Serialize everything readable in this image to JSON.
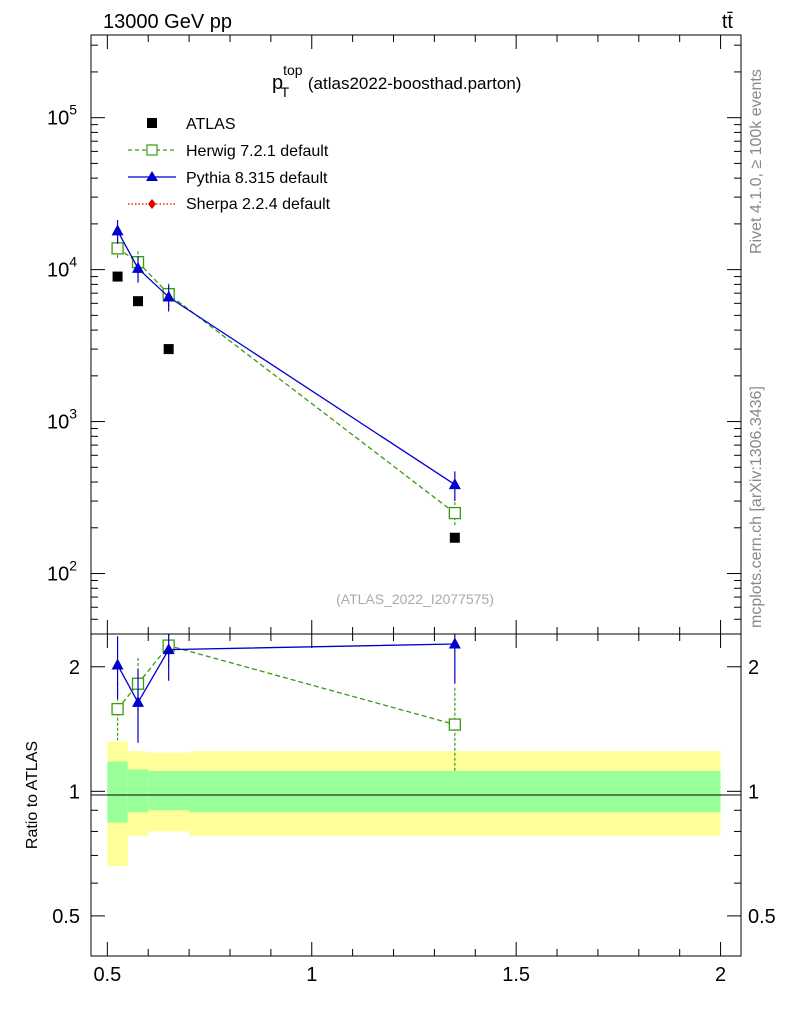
{
  "header": {
    "left": "13000 GeV pp",
    "right": "tt̄"
  },
  "side_labels": {
    "top": "Rivet 4.1.0, ≥ 100k events",
    "bottom": "mcplots.cern.ch [arXiv:1306.3436]"
  },
  "watermark": "(ATLAS_2022_I2077575)",
  "chart_data": {
    "type": "scatter",
    "title": {
      "main": "p",
      "sup": "top",
      "sub": "T",
      "suffix": " (atlas2022-boosthad.parton)"
    },
    "xlabel": "",
    "ylabel_ratio": "Ratio to ATLAS",
    "xlim": [
      0.46,
      2.05
    ],
    "ylim_main": [
      40,
      350000
    ],
    "ylim_ratio": [
      0.4,
      2.4
    ],
    "x_ticks": [
      0.5,
      1,
      1.5,
      2
    ],
    "x_tick_labels": [
      "0.5",
      "1",
      "1.5",
      "2"
    ],
    "y_ticks_main": [
      100,
      1000,
      10000,
      100000
    ],
    "y_tick_labels_main": [
      {
        "base": "10",
        "exp": "2"
      },
      {
        "base": "10",
        "exp": "3"
      },
      {
        "base": "10",
        "exp": "4"
      },
      {
        "base": "10",
        "exp": "5"
      }
    ],
    "y_ticks_ratio": [
      0.5,
      1,
      2
    ],
    "y_tick_labels_ratio": [
      "0.5",
      "1",
      "2"
    ],
    "legend": [
      {
        "name": "ATLAS",
        "color": "#000000",
        "style": "square"
      },
      {
        "name": "Herwig 7.2.1 default",
        "color": "#3a9a12",
        "style": "open-square-dashed"
      },
      {
        "name": "Pythia 8.315 default",
        "color": "#0000cc",
        "style": "triangle-solid"
      },
      {
        "name": "Sherpa 2.2.4 default",
        "color": "#e00000",
        "style": "diamond-dotted"
      }
    ],
    "data": {
      "x": [
        0.525,
        0.575,
        0.65,
        1.35
      ],
      "y": [
        9000,
        6200,
        3000,
        172
      ]
    },
    "band_edges": [
      0.5,
      0.55,
      0.6,
      0.7,
      2.0
    ],
    "band_stat": [
      [
        0.84,
        1.18
      ],
      [
        0.89,
        1.13
      ],
      [
        0.9,
        1.12
      ],
      [
        0.89,
        1.12
      ]
    ],
    "band_total": [
      [
        0.66,
        1.32
      ],
      [
        0.78,
        1.25
      ],
      [
        0.8,
        1.24
      ],
      [
        0.78,
        1.25
      ]
    ],
    "series": [
      {
        "name": "Herwig 7.2.1 default",
        "x": [
          0.525,
          0.575,
          0.65,
          1.35
        ],
        "y": [
          13800,
          11200,
          6900,
          250
        ],
        "yerr": [
          1900,
          2000,
          1200,
          45
        ],
        "ratio": [
          1.58,
          1.82,
          2.25,
          1.45
        ],
        "ratio_err": [
          0.25,
          0.28,
          0.25,
          0.33
        ]
      },
      {
        "name": "Pythia 8.315 default",
        "x": [
          0.525,
          0.575,
          0.65,
          1.35
        ],
        "y": [
          18000,
          10200,
          6600,
          385
        ],
        "yerr": [
          3200,
          2000,
          1300,
          85
        ],
        "ratio": [
          2.02,
          1.64,
          2.2,
          2.27
        ],
        "ratio_err": [
          0.35,
          0.33,
          0.35,
          0.45
        ]
      }
    ]
  }
}
